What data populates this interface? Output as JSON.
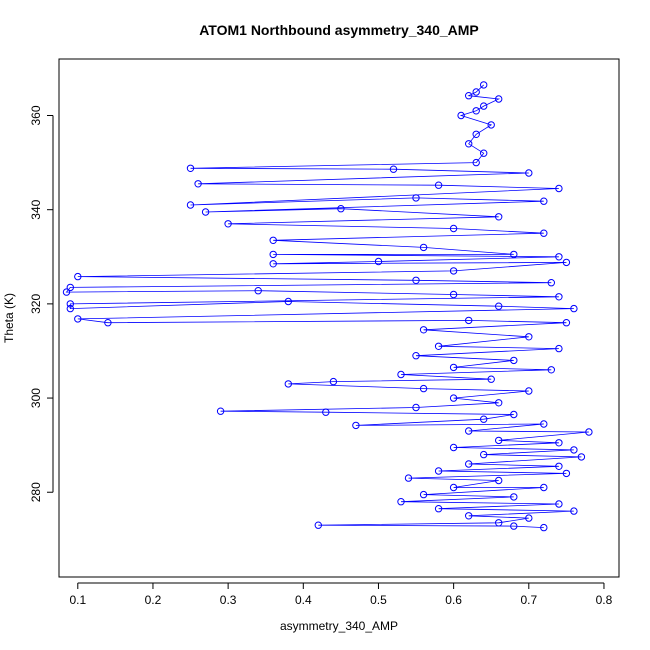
{
  "chart_data": {
    "type": "scatter",
    "title": "ATOM1 Northbound asymmetry_340_AMP",
    "xlabel": "asymmetry_340_AMP",
    "ylabel": "Theta (K)",
    "xlim": [
      0.075,
      0.82
    ],
    "ylim": [
      262,
      372
    ],
    "x_ticks": [
      0.1,
      0.2,
      0.3,
      0.4,
      0.5,
      0.6,
      0.7,
      0.8
    ],
    "x_tick_labels": [
      "0.1",
      "0.2",
      "0.3",
      "0.4",
      "0.5",
      "0.6",
      "0.7",
      "0.8"
    ],
    "y_ticks": [
      280,
      300,
      320,
      340,
      360
    ],
    "y_tick_labels": [
      "280",
      "300",
      "320",
      "340",
      "360"
    ],
    "grid": false,
    "legend": "none",
    "series": [
      {
        "color": "#0000ff",
        "marker": "open-circle",
        "connected": true,
        "points": [
          [
            0.64,
            366.5
          ],
          [
            0.63,
            365.0
          ],
          [
            0.62,
            364.2
          ],
          [
            0.66,
            363.5
          ],
          [
            0.64,
            362.0
          ],
          [
            0.63,
            361.0
          ],
          [
            0.61,
            360.0
          ],
          [
            0.65,
            358.0
          ],
          [
            0.63,
            356.0
          ],
          [
            0.62,
            354.0
          ],
          [
            0.64,
            352.0
          ],
          [
            0.63,
            350.0
          ],
          [
            0.25,
            348.8
          ],
          [
            0.52,
            348.6
          ],
          [
            0.7,
            347.8
          ],
          [
            0.26,
            345.5
          ],
          [
            0.58,
            345.2
          ],
          [
            0.74,
            344.5
          ],
          [
            0.25,
            341.0
          ],
          [
            0.55,
            342.5
          ],
          [
            0.72,
            341.8
          ],
          [
            0.27,
            339.5
          ],
          [
            0.45,
            340.2
          ],
          [
            0.66,
            338.5
          ],
          [
            0.3,
            337.0
          ],
          [
            0.6,
            336.0
          ],
          [
            0.72,
            335.0
          ],
          [
            0.36,
            333.5
          ],
          [
            0.56,
            332.0
          ],
          [
            0.68,
            330.5
          ],
          [
            0.36,
            330.5
          ],
          [
            0.74,
            330.0
          ],
          [
            0.5,
            329.0
          ],
          [
            0.36,
            328.5
          ],
          [
            0.75,
            328.8
          ],
          [
            0.6,
            327.0
          ],
          [
            0.1,
            325.8
          ],
          [
            0.55,
            325.0
          ],
          [
            0.73,
            324.5
          ],
          [
            0.09,
            323.5
          ],
          [
            0.085,
            322.5
          ],
          [
            0.34,
            322.8
          ],
          [
            0.6,
            322.0
          ],
          [
            0.74,
            321.5
          ],
          [
            0.09,
            320.0
          ],
          [
            0.09,
            319.0
          ],
          [
            0.38,
            320.5
          ],
          [
            0.66,
            319.5
          ],
          [
            0.76,
            319.0
          ],
          [
            0.1,
            316.8
          ],
          [
            0.14,
            316.0
          ],
          [
            0.62,
            316.5
          ],
          [
            0.75,
            316.0
          ],
          [
            0.56,
            314.5
          ],
          [
            0.7,
            313.0
          ],
          [
            0.58,
            311.0
          ],
          [
            0.74,
            310.5
          ],
          [
            0.55,
            309.0
          ],
          [
            0.68,
            308.0
          ],
          [
            0.6,
            306.5
          ],
          [
            0.73,
            306.0
          ],
          [
            0.53,
            305.0
          ],
          [
            0.65,
            304.0
          ],
          [
            0.44,
            303.5
          ],
          [
            0.38,
            303.0
          ],
          [
            0.56,
            302.0
          ],
          [
            0.7,
            301.5
          ],
          [
            0.6,
            300.0
          ],
          [
            0.66,
            299.0
          ],
          [
            0.55,
            298.0
          ],
          [
            0.29,
            297.2
          ],
          [
            0.43,
            297.0
          ],
          [
            0.68,
            296.5
          ],
          [
            0.64,
            295.5
          ],
          [
            0.47,
            294.2
          ],
          [
            0.72,
            294.5
          ],
          [
            0.62,
            293.0
          ],
          [
            0.78,
            292.8
          ],
          [
            0.66,
            291.0
          ],
          [
            0.74,
            290.5
          ],
          [
            0.6,
            289.5
          ],
          [
            0.76,
            289.0
          ],
          [
            0.64,
            288.0
          ],
          [
            0.77,
            287.5
          ],
          [
            0.62,
            286.0
          ],
          [
            0.74,
            285.5
          ],
          [
            0.58,
            284.5
          ],
          [
            0.75,
            284.0
          ],
          [
            0.54,
            283.0
          ],
          [
            0.66,
            282.5
          ],
          [
            0.6,
            281.0
          ],
          [
            0.72,
            281.0
          ],
          [
            0.56,
            279.5
          ],
          [
            0.68,
            279.0
          ],
          [
            0.53,
            278.0
          ],
          [
            0.74,
            277.5
          ],
          [
            0.58,
            276.5
          ],
          [
            0.76,
            276.0
          ],
          [
            0.62,
            275.0
          ],
          [
            0.7,
            274.5
          ],
          [
            0.66,
            273.5
          ],
          [
            0.42,
            273.0
          ],
          [
            0.68,
            272.8
          ],
          [
            0.72,
            272.5
          ]
        ]
      }
    ]
  }
}
